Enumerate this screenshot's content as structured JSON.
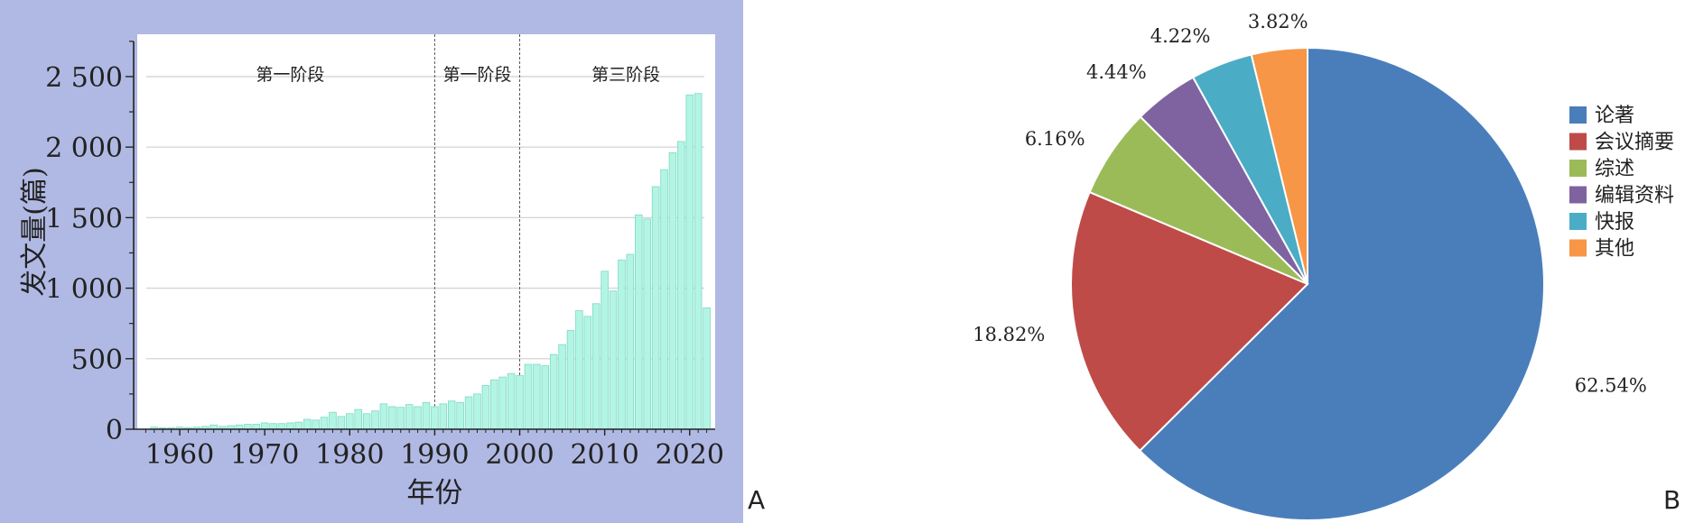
{
  "panel_labels": {
    "a": "A",
    "b": "B"
  },
  "colors": {
    "panel_a_background": "#b0b9e3",
    "bar_fill": "#b3f5e4",
    "bar_stroke": "#7fd9c4"
  },
  "chart_data": [
    {
      "type": "bar",
      "xlabel": "年份",
      "ylabel": "发文量(篇)",
      "ylim": [
        0,
        2800
      ],
      "xlim": [
        1955,
        2023
      ],
      "grid": true,
      "yticks": [
        0,
        500,
        1000,
        1500,
        2000,
        2500
      ],
      "ytick_labels": [
        "0",
        "500",
        "1 000",
        "1 500",
        "2 000",
        "2 500"
      ],
      "xticks": [
        1960,
        1970,
        1980,
        1990,
        2000,
        2010,
        2020
      ],
      "xtick_labels": [
        "1960",
        "1970",
        "1980",
        "1990",
        "2000",
        "2010",
        "2020"
      ],
      "dividers": [
        1990,
        2000
      ],
      "annotations": [
        {
          "text": "第一阶段",
          "x": 1973,
          "y": 2520
        },
        {
          "text": "第一阶段",
          "x": 1995,
          "y": 2520
        },
        {
          "text": "第三阶段",
          "x": 2012.5,
          "y": 2520
        }
      ],
      "x": [
        1957,
        1958,
        1959,
        1960,
        1961,
        1962,
        1963,
        1964,
        1965,
        1966,
        1967,
        1968,
        1969,
        1970,
        1971,
        1972,
        1973,
        1974,
        1975,
        1976,
        1977,
        1978,
        1979,
        1980,
        1981,
        1982,
        1983,
        1984,
        1985,
        1986,
        1987,
        1988,
        1989,
        1990,
        1991,
        1992,
        1993,
        1994,
        1995,
        1996,
        1997,
        1998,
        1999,
        2000,
        2001,
        2002,
        2003,
        2004,
        2005,
        2006,
        2007,
        2008,
        2009,
        2010,
        2011,
        2012,
        2013,
        2014,
        2015,
        2016,
        2017,
        2018,
        2019,
        2020,
        2021,
        2022
      ],
      "values": [
        15,
        10,
        10,
        15,
        12,
        15,
        20,
        30,
        20,
        25,
        30,
        35,
        35,
        45,
        40,
        40,
        45,
        50,
        70,
        65,
        85,
        120,
        90,
        110,
        140,
        110,
        130,
        180,
        160,
        155,
        175,
        160,
        190,
        160,
        180,
        200,
        190,
        230,
        250,
        310,
        350,
        370,
        395,
        380,
        460,
        460,
        450,
        530,
        600,
        700,
        840,
        800,
        890,
        1120,
        980,
        1200,
        1240,
        1520,
        1490,
        1720,
        1840,
        1960,
        2040,
        2370,
        2380,
        860
      ]
    },
    {
      "type": "pie",
      "slices": [
        {
          "label": "论著",
          "value": 62.54,
          "display": "62.54%",
          "color": "#4a7ebb"
        },
        {
          "label": "会议摘要",
          "value": 18.82,
          "display": "18.82%",
          "color": "#be4b48"
        },
        {
          "label": "综述",
          "value": 6.16,
          "display": "6.16%",
          "color": "#9bbb59"
        },
        {
          "label": "编辑资料",
          "value": 4.44,
          "display": "4.44%",
          "color": "#7f63a0"
        },
        {
          "label": "快报",
          "value": 4.22,
          "display": "4.22%",
          "color": "#4bacc6"
        },
        {
          "label": "其他",
          "value": 3.82,
          "display": "3.82%",
          "color": "#f79646"
        }
      ],
      "legend_position": "right"
    }
  ]
}
